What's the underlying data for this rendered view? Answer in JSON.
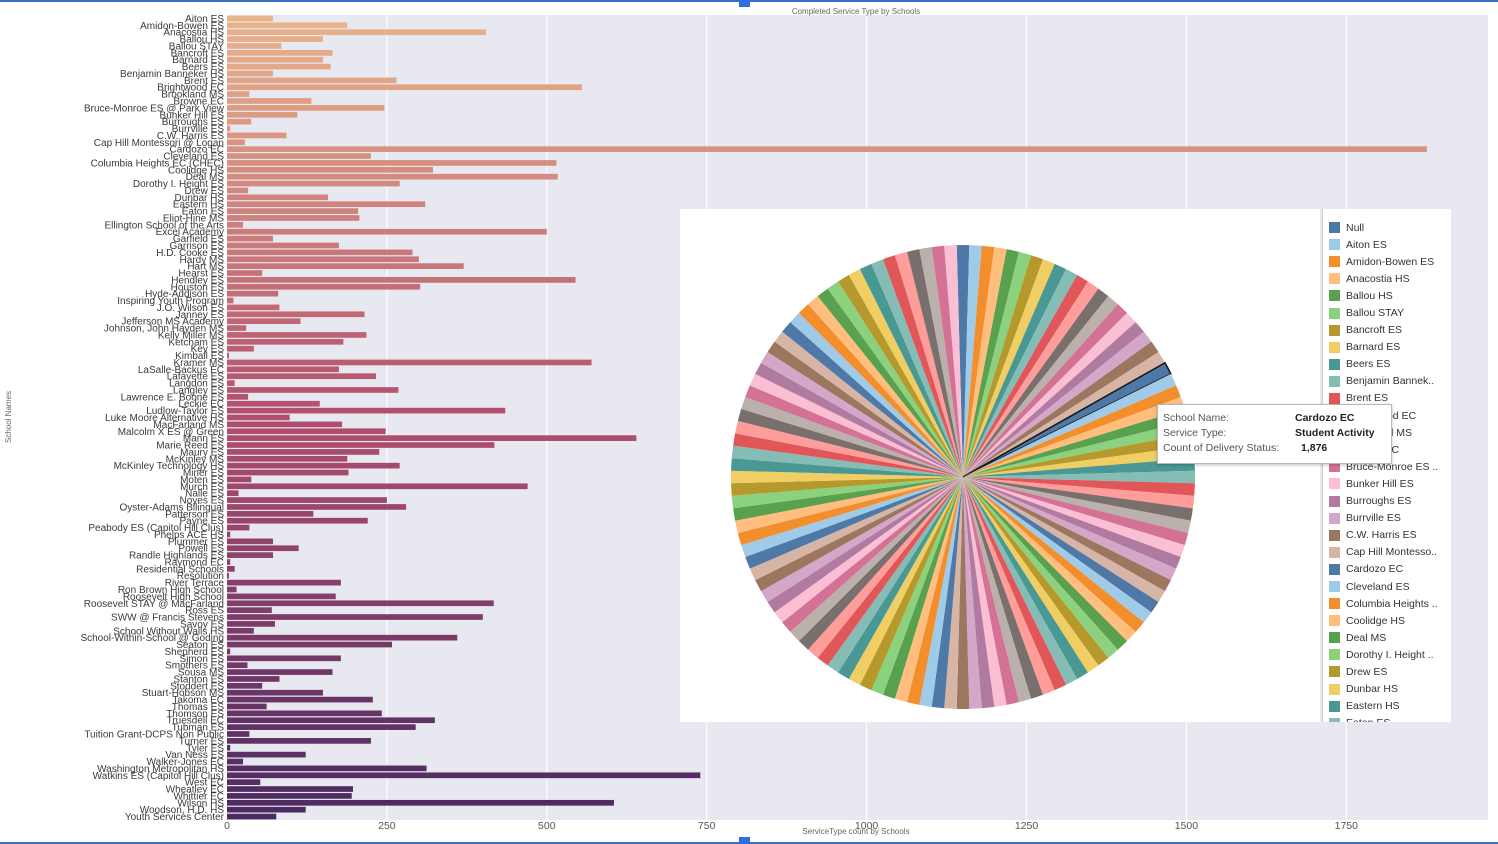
{
  "chart_data": [
    {
      "type": "bar",
      "orientation": "horizontal",
      "title": "Completed Service Type by Schools",
      "xlabel": "ServiceType count by Schools",
      "ylabel": "School Names",
      "xlim": [
        0,
        1900
      ],
      "xticks": [
        "0",
        "250",
        "500",
        "750",
        "1000",
        "1250",
        "1500",
        "1750"
      ],
      "grid": true,
      "categories": [
        "Aiton ES",
        "Amidon-Bowen ES",
        "Anacostia HS",
        "Ballou HS",
        "Ballou STAY",
        "Bancroft ES",
        "Barnard ES",
        "Beers ES",
        "Benjamin Banneker HS",
        "Brent ES",
        "Brightwood EC",
        "Brookland MS",
        "Browne EC",
        "Bruce-Monroe ES @ Park View",
        "Bunker Hill ES",
        "Burroughs ES",
        "Burrville ES",
        "C.W. Harris ES",
        "Cap Hill Montessori @ Logan",
        "Cardozo EC",
        "Cleveland ES",
        "Columbia Heights EC (CHEC)",
        "Coolidge HS",
        "Deal MS",
        "Dorothy I. Height ES",
        "Drew ES",
        "Dunbar HS",
        "Eastern HS",
        "Eaton ES",
        "Eliot-Hine MS",
        "Ellington School of the Arts",
        "Excel Academy",
        "Garfield ES",
        "Garrison ES",
        "H.D. Cooke ES",
        "Hardy MS",
        "Hart MS",
        "Hearst ES",
        "Hendley ES",
        "Houston ES",
        "Hyde-Addison ES",
        "Inspiring Youth Program",
        "J.O. Wilson ES",
        "Janney ES",
        "Jefferson MS Academy",
        "Johnson, John Hayden MS",
        "Kelly Miller MS",
        "Ketcham ES",
        "Key ES",
        "Kimball ES",
        "Kramer MS",
        "LaSalle-Backus EC",
        "Lafayette ES",
        "Langdon ES",
        "Langley ES",
        "Lawrence E. Boone ES",
        "Leckie EC",
        "Ludlow-Taylor ES",
        "Luke Moore Alternative HS",
        "MacFarland MS",
        "Malcolm X ES @ Green",
        "Mann ES",
        "Marie Reed ES",
        "Maury ES",
        "McKinley MS",
        "McKinley Technology HS",
        "Miner ES",
        "Moten ES",
        "Murch ES",
        "Nalle ES",
        "Noyes ES",
        "Oyster-Adams Bilingual",
        "Patterson ES",
        "Payne ES",
        "Peabody ES (Capitol Hill Clus)",
        "Phelps ACE HS",
        "Plummer ES",
        "Powell ES",
        "Randle Highlands ES",
        "Raymond EC",
        "Residential Schools",
        "Resolution",
        "River Terrace",
        "Ron Brown High School",
        "Roosevelt High School",
        "Roosevelt STAY @ MacFarland",
        "Ross ES",
        "SWW @ Francis Stevens",
        "Savoy ES",
        "School Without Walls HS",
        "School-Within-School @ Goding",
        "Seaton ES",
        "Shepherd ES",
        "Simon ES",
        "Smothers ES",
        "Sousa MS",
        "Stanton ES",
        "Stoddert ES",
        "Stuart-Hobson MS",
        "Takoma EC",
        "Thomas ES",
        "Thomson ES",
        "Truesdell EC",
        "Tubman ES",
        "Tuition Grant-DCPS Non Public",
        "Turner ES",
        "Tyler ES",
        "Van Ness ES",
        "Walker-Jones EC",
        "Washington Metropolitan HS",
        "Watkins ES (Capitol Hill Clus)",
        "West EC",
        "Wheatley EC",
        "Whittier EC",
        "Wilson HS",
        "Woodson, H.D. HS",
        "Youth Services Center"
      ],
      "values": [
        72,
        188,
        405,
        150,
        85,
        165,
        150,
        162,
        72,
        265,
        555,
        35,
        132,
        246,
        110,
        38,
        5,
        93,
        28,
        1876,
        225,
        515,
        322,
        517,
        270,
        33,
        158,
        310,
        205,
        207,
        25,
        500,
        72,
        175,
        290,
        300,
        370,
        55,
        545,
        302,
        80,
        10,
        82,
        215,
        115,
        30,
        218,
        182,
        42,
        3,
        570,
        175,
        233,
        12,
        268,
        33,
        145,
        435,
        98,
        180,
        248,
        640,
        418,
        238,
        188,
        270,
        190,
        38,
        470,
        18,
        250,
        280,
        135,
        220,
        35,
        5,
        72,
        112,
        72,
        5,
        12,
        3,
        178,
        15,
        170,
        417,
        70,
        400,
        75,
        42,
        360,
        258,
        5,
        178,
        32,
        165,
        82,
        55,
        150,
        228,
        62,
        242,
        325,
        295,
        35,
        225,
        5,
        123,
        25,
        312,
        740,
        52,
        197,
        195,
        605,
        123,
        77
      ]
    },
    {
      "type": "pie",
      "title": "",
      "legend_position": "right",
      "legend_visible": [
        "Null",
        "Aiton ES",
        "Amidon-Bowen ES",
        "Anacostia HS",
        "Ballou HS",
        "Ballou STAY",
        "Bancroft ES",
        "Barnard ES",
        "Beers ES",
        "Benjamin Bannek..",
        "Brent ES",
        "Brightwood EC",
        "Brookland MS",
        "Browne EC",
        "Bruce-Monroe ES ..",
        "Bunker Hill ES",
        "Burroughs ES",
        "Burrville ES",
        "C.W. Harris ES",
        "Cap Hill Montesso..",
        "Cardozo EC",
        "Cleveland ES",
        "Columbia Heights ..",
        "Coolidge HS",
        "Deal MS",
        "Dorothy I. Height ..",
        "Drew ES",
        "Dunbar HS",
        "Eastern HS",
        "Eaton ES"
      ],
      "slice_count": 116,
      "highlighted_slice": "Cardozo EC",
      "tooltip": {
        "school_label": "School Name:",
        "school_value": "Cardozo EC",
        "service_label": "Service Type:",
        "service_value": "Student Activity",
        "count_label": "Count of Delivery Status:",
        "count_value": "1,876"
      }
    }
  ],
  "colors": {
    "palette": [
      "#4e79a7",
      "#a0cbe8",
      "#f28e2b",
      "#ffbe7d",
      "#59a14f",
      "#8cd17d",
      "#b6992d",
      "#f1ce63",
      "#499894",
      "#86bcb6",
      "#e15759",
      "#ff9d9a",
      "#79706e",
      "#bab0ac",
      "#d37295",
      "#fabfd2",
      "#b07aa1",
      "#d4a6c8",
      "#9d7660",
      "#d7b5a6"
    ],
    "bar_gradient_start": "#e9b48a",
    "bar_gradient_mid": "#b24e6e",
    "bar_gradient_end": "#4b2a62",
    "plot_background": "#e8e8f0",
    "frame_accent": "#3a6fc4"
  }
}
